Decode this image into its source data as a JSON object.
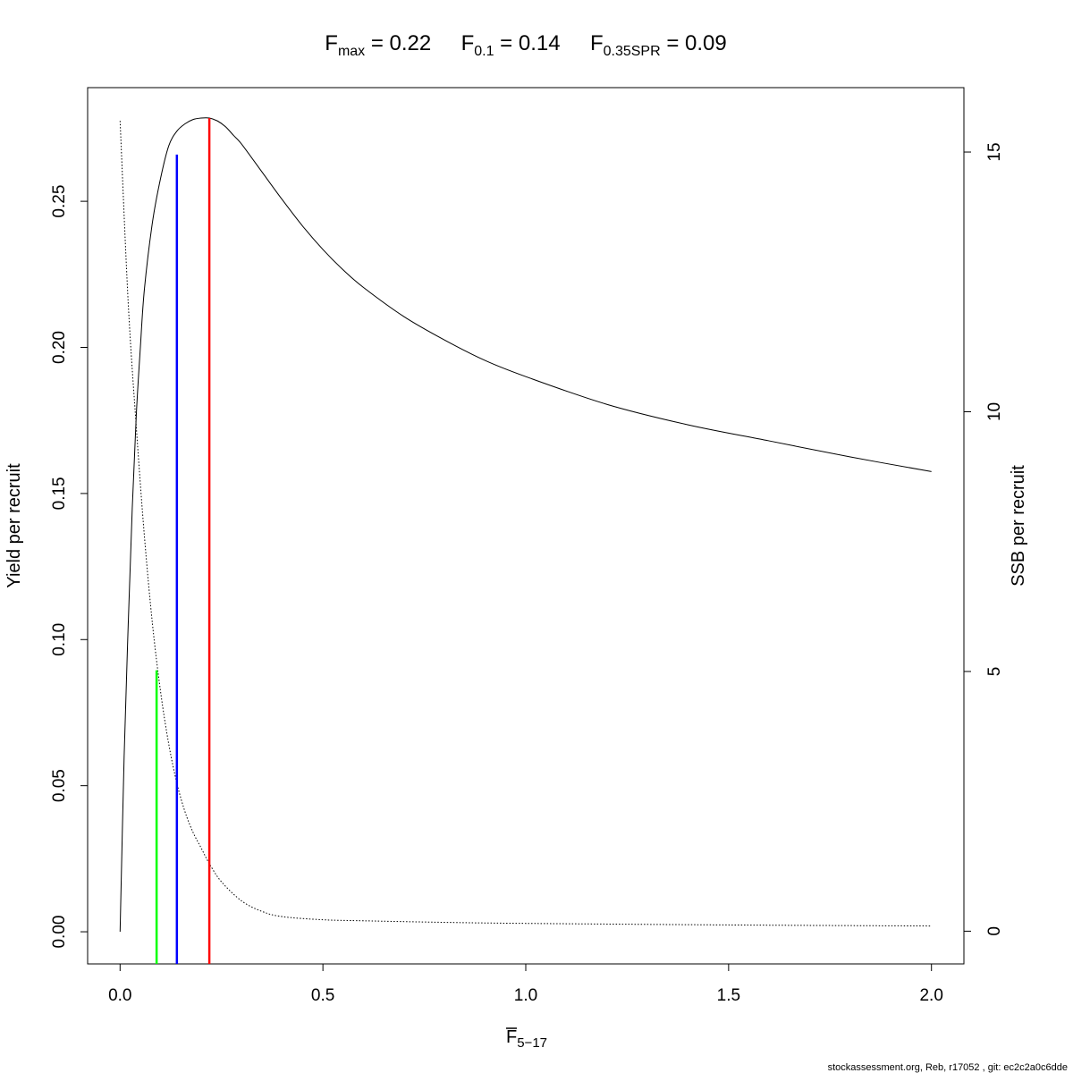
{
  "chart_data": {
    "type": "line",
    "title": {
      "fmax": {
        "base": "F",
        "sub": "max",
        "value": "0.22"
      },
      "f01": {
        "base": "F",
        "sub": "0.1",
        "value": "0.14"
      },
      "f035": {
        "base": "F",
        "sub": "0.35SPR",
        "value": "0.09"
      }
    },
    "xlabel": {
      "base": "F",
      "sub": "5−17",
      "bar": true
    },
    "ylabel_left": "Yield per recruit",
    "ylabel_right": "SSB per recruit",
    "xlim": [
      -0.08,
      2.08
    ],
    "ylim_left": [
      -0.011,
      0.2889
    ],
    "ylim_right": [
      -0.63,
      16.24
    ],
    "x_ticks": [
      {
        "v": 0.0,
        "label": "0.0"
      },
      {
        "v": 0.5,
        "label": "0.5"
      },
      {
        "v": 1.0,
        "label": "1.0"
      },
      {
        "v": 1.5,
        "label": "1.5"
      },
      {
        "v": 2.0,
        "label": "2.0"
      }
    ],
    "y_left_ticks": [
      {
        "v": 0.0,
        "label": "0.00"
      },
      {
        "v": 0.05,
        "label": "0.05"
      },
      {
        "v": 0.1,
        "label": "0.10"
      },
      {
        "v": 0.15,
        "label": "0.15"
      },
      {
        "v": 0.2,
        "label": "0.20"
      },
      {
        "v": 0.25,
        "label": "0.25"
      }
    ],
    "y_right_ticks": [
      {
        "v": 0,
        "label": "0"
      },
      {
        "v": 5,
        "label": "5"
      },
      {
        "v": 10,
        "label": "10"
      },
      {
        "v": 15,
        "label": "15"
      }
    ],
    "series": [
      {
        "axis": "left",
        "style": "solid",
        "color": "#000000",
        "x": [
          0,
          0.01,
          0.02,
          0.03,
          0.04,
          0.05,
          0.06,
          0.08,
          0.1,
          0.12,
          0.14,
          0.16,
          0.18,
          0.2,
          0.22,
          0.24,
          0.26,
          0.28,
          0.3,
          0.35,
          0.4,
          0.45,
          0.5,
          0.55,
          0.6,
          0.7,
          0.8,
          0.9,
          1.0,
          1.2,
          1.4,
          1.6,
          1.8,
          2.0
        ],
        "y": [
          0,
          0.06,
          0.105,
          0.145,
          0.177,
          0.2,
          0.22,
          0.243,
          0.258,
          0.269,
          0.274,
          0.2765,
          0.278,
          0.2785,
          0.2785,
          0.2775,
          0.2755,
          0.2725,
          0.2695,
          0.26,
          0.2505,
          0.2415,
          0.2335,
          0.2265,
          0.2205,
          0.2105,
          0.2025,
          0.1955,
          0.19,
          0.1805,
          0.1735,
          0.168,
          0.1625,
          0.1575
        ]
      },
      {
        "axis": "right",
        "style": "dotted",
        "color": "#000000",
        "x": [
          0,
          0.02,
          0.04,
          0.06,
          0.08,
          0.1,
          0.12,
          0.14,
          0.16,
          0.18,
          0.2,
          0.22,
          0.25,
          0.3,
          0.35,
          0.4,
          0.5,
          0.6,
          0.8,
          1.0,
          1.5,
          2.0
        ],
        "y": [
          15.6,
          12.1,
          9.7,
          7.6,
          5.9,
          4.6,
          3.6,
          2.85,
          2.3,
          1.9,
          1.6,
          1.3,
          0.95,
          0.58,
          0.38,
          0.28,
          0.22,
          0.2,
          0.17,
          0.15,
          0.12,
          0.1
        ]
      }
    ],
    "reference_lines": [
      {
        "name": "F0.35SPR",
        "x": 0.09,
        "y_top": 0.0895,
        "color": "#00ff00"
      },
      {
        "name": "F0.1",
        "x": 0.14,
        "y_top": 0.266,
        "color": "#0000ff"
      },
      {
        "name": "Fmax",
        "x": 0.22,
        "y_top": 0.2785,
        "color": "#ff0000"
      }
    ]
  },
  "footer": "stockassessment.org, Reb, r17052 , git: ec2c2a0c6dde"
}
